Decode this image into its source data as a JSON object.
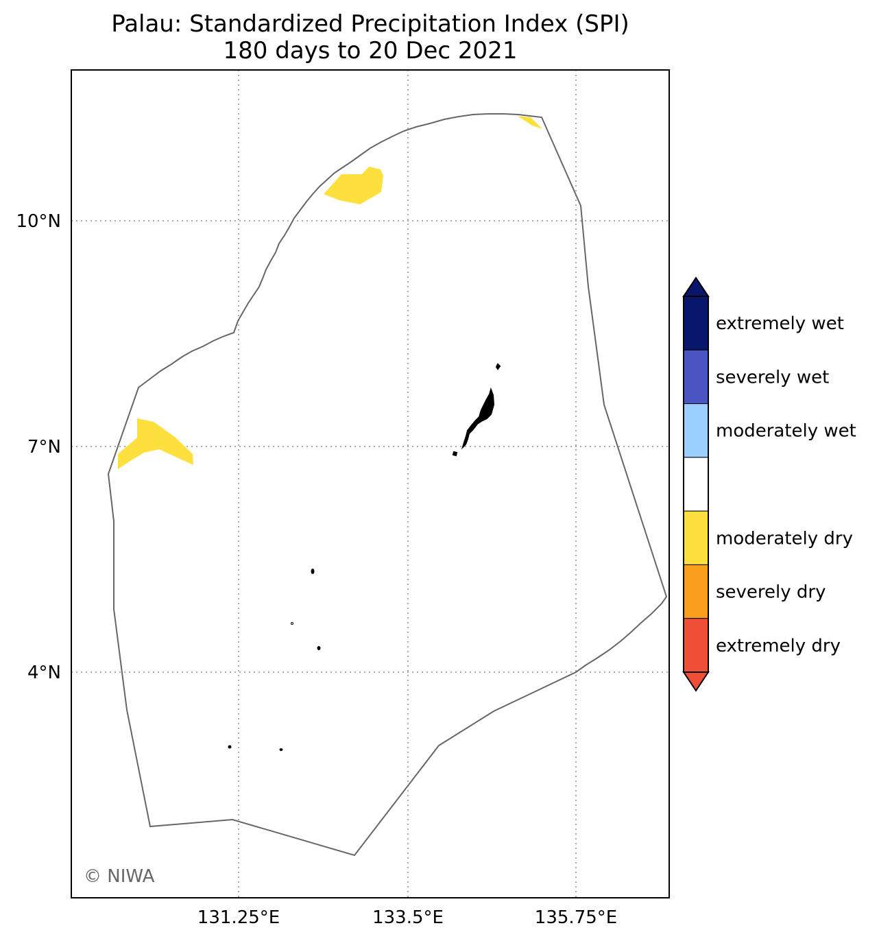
{
  "title": {
    "line1": "Palau: Standardized Precipitation Index (SPI)",
    "line2": "180 days to 20 Dec 2021"
  },
  "axes": {
    "x_ticks": [
      "131.25°E",
      "133.5°E",
      "135.75°E"
    ],
    "y_ticks": [
      "10°N",
      "7°N",
      "4°N"
    ]
  },
  "legend": {
    "categories": [
      {
        "label": "extremely wet",
        "color": "#08166b"
      },
      {
        "label": "severely wet",
        "color": "#4a55c2"
      },
      {
        "label": "moderately wet",
        "color": "#9bcfff"
      },
      {
        "label": "",
        "color": "#ffffff"
      },
      {
        "label": "moderately dry",
        "color": "#fddf3e"
      },
      {
        "label": "severely dry",
        "color": "#f99e1c"
      },
      {
        "label": "extremely dry",
        "color": "#ef4f37"
      }
    ],
    "extend_top_color": "#08166b",
    "extend_bottom_color": "#ef4f37"
  },
  "credit": "© NIWA",
  "colors": {
    "eez_boundary": "#666666",
    "moderately_dry": "#fddf3e",
    "land": "#000000"
  }
}
